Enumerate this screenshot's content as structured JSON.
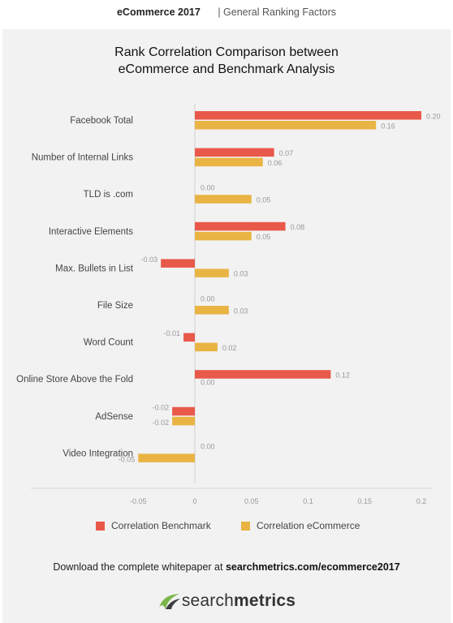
{
  "header": {
    "brand": "eCommerce 2017",
    "section": "| General Ranking Factors"
  },
  "chart_data": {
    "type": "bar",
    "orientation": "horizontal",
    "title_lines": [
      "Rank Correlation Comparison between",
      "eCommerce and Benchmark Analysis"
    ],
    "categories": [
      "Facebook Total",
      "Number of Internal Links",
      "TLD is .com",
      "Interactive Elements",
      "Max. Bullets in List",
      "File Size",
      "Word Count",
      "Online Store Above the Fold",
      "AdSense",
      "Video Integration"
    ],
    "series": [
      {
        "name": "Correlation Benchmark",
        "color": "#e8594a",
        "values": [
          0.2,
          0.07,
          0.0,
          0.08,
          -0.03,
          0.0,
          -0.01,
          0.12,
          -0.02,
          0.0
        ],
        "labels": [
          "0.20",
          "0.07",
          "0.00",
          "0.08",
          "-0.03",
          "0.00",
          "-0.01",
          "0.12",
          "-0.02",
          "0.00"
        ]
      },
      {
        "name": "Correlation eCommerce",
        "color": "#e9b443",
        "values": [
          0.16,
          0.06,
          0.05,
          0.05,
          0.03,
          0.03,
          0.02,
          0.0,
          -0.02,
          -0.05
        ],
        "labels": [
          "0.16",
          "0.06",
          "0.05",
          "0.05",
          "0.03",
          "0.03",
          "0.02",
          "0.00",
          "-0.02",
          "-0.05"
        ]
      }
    ],
    "xlim": [
      -0.05,
      0.2
    ],
    "xticks": [
      "-0.05",
      "0",
      "0.05",
      "0.1",
      "0.15",
      "0.2"
    ],
    "xtick_values": [
      -0.05,
      0,
      0.05,
      0.1,
      0.15,
      0.2
    ],
    "grid": false,
    "legend_position": "bottom"
  },
  "footer": {
    "text": "Download the complete whitepaper at ",
    "link": "searchmetrics.com/ecommerce2017"
  },
  "logo": {
    "part1": "search",
    "part2": "metrics",
    "colors": {
      "green": "#7ab648",
      "dark": "#3d3d3d"
    }
  }
}
